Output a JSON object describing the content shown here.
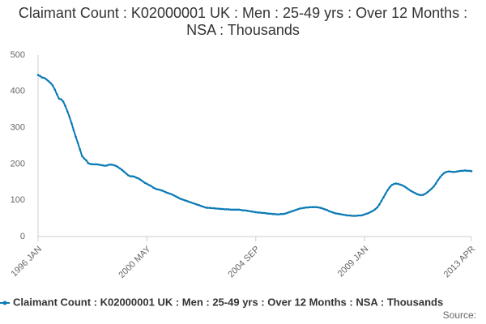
{
  "chart_data": {
    "type": "line",
    "title": "Claimant Count : K02000001 UK : Men : 25-49 yrs : Over 12 Months : NSA : Thousands",
    "source": "Source:",
    "categories": [
      "1996 JAN",
      null,
      null,
      null,
      null,
      null,
      null,
      null,
      null,
      null,
      null,
      null,
      null,
      null,
      null,
      null,
      null,
      null,
      null,
      null,
      null,
      null,
      null,
      null,
      null,
      null,
      null,
      null,
      null,
      null,
      null,
      null,
      null,
      null,
      null,
      null,
      null,
      null,
      null,
      null,
      null,
      null,
      null,
      null,
      null,
      null,
      null,
      null,
      null,
      null,
      null,
      null,
      "2000 MAY",
      null,
      null,
      null,
      null,
      null,
      null,
      null,
      null,
      null,
      null,
      null,
      null,
      null,
      null,
      null,
      null,
      null,
      null,
      null,
      null,
      null,
      null,
      null,
      null,
      null,
      null,
      null,
      null,
      null,
      null,
      null,
      null,
      null,
      null,
      null,
      null,
      null,
      null,
      null,
      null,
      null,
      null,
      null,
      null,
      null,
      null,
      null,
      null,
      null,
      null,
      null,
      "2004 SEP",
      null,
      null,
      null,
      null,
      null,
      null,
      null,
      null,
      null,
      null,
      null,
      null,
      null,
      null,
      null,
      null,
      null,
      null,
      null,
      null,
      null,
      null,
      null,
      null,
      null,
      null,
      null,
      null,
      null,
      null,
      null,
      null,
      null,
      null,
      null,
      null,
      null,
      null,
      null,
      null,
      null,
      null,
      null,
      null,
      null,
      null,
      null,
      null,
      null,
      null,
      null,
      "2009 JAN",
      null,
      null,
      null,
      null,
      null,
      null,
      null,
      null,
      null,
      null,
      null,
      null,
      null,
      null,
      null,
      null,
      null,
      null,
      null,
      null,
      null,
      null,
      null,
      null,
      null,
      null,
      null,
      null,
      null,
      null,
      null,
      null,
      null,
      null,
      null,
      null,
      null,
      null,
      null,
      null,
      null,
      null,
      null,
      null,
      null,
      null,
      null,
      null,
      null,
      null,
      "2013 APR"
    ],
    "series": [
      {
        "name": "Claimant Count : K02000001 UK : Men : 25-49 yrs : Over 12 Months : NSA : Thousands",
        "color": "#0b7bb5",
        "values": [
          445,
          442,
          438,
          437,
          433,
          428,
          423,
          416,
          405,
          392,
          380,
          378,
          372,
          360,
          345,
          330,
          312,
          293,
          275,
          258,
          240,
          222,
          215,
          210,
          202,
          200,
          199,
          199,
          199,
          198,
          197,
          196,
          195,
          196,
          198,
          198,
          197,
          195,
          192,
          188,
          184,
          179,
          174,
          169,
          166,
          166,
          165,
          162,
          160,
          156,
          152,
          148,
          145,
          142,
          139,
          135,
          132,
          130,
          129,
          127,
          125,
          122,
          120,
          118,
          116,
          113,
          110,
          107,
          104,
          102,
          100,
          98,
          96,
          94,
          92,
          90,
          88,
          86,
          84,
          82,
          80,
          79,
          79,
          78,
          78,
          77,
          77,
          76,
          76,
          75,
          75,
          75,
          74,
          74,
          74,
          74,
          74,
          73,
          72,
          72,
          71,
          70,
          69,
          68,
          67,
          66,
          66,
          65,
          65,
          64,
          63,
          63,
          62,
          62,
          61,
          61,
          62,
          62,
          63,
          65,
          67,
          69,
          71,
          73,
          75,
          77,
          78,
          79,
          80,
          80,
          81,
          81,
          81,
          81,
          80,
          79,
          77,
          75,
          73,
          70,
          68,
          66,
          64,
          63,
          62,
          61,
          60,
          59,
          58,
          58,
          57,
          57,
          57,
          58,
          58,
          59,
          61,
          63,
          65,
          68,
          71,
          75,
          80,
          88,
          98,
          108,
          118,
          128,
          136,
          142,
          145,
          146,
          145,
          143,
          141,
          138,
          134,
          130,
          126,
          123,
          120,
          117,
          115,
          114,
          115,
          118,
          122,
          127,
          132,
          138,
          146,
          155,
          163,
          170,
          175,
          178,
          179,
          179,
          178,
          178,
          179,
          180,
          181,
          181,
          182,
          181,
          181,
          180
        ]
      }
    ],
    "ylim": [
      0,
      500
    ],
    "yticks": [
      0,
      100,
      200,
      300,
      400,
      500
    ],
    "grid": false
  }
}
